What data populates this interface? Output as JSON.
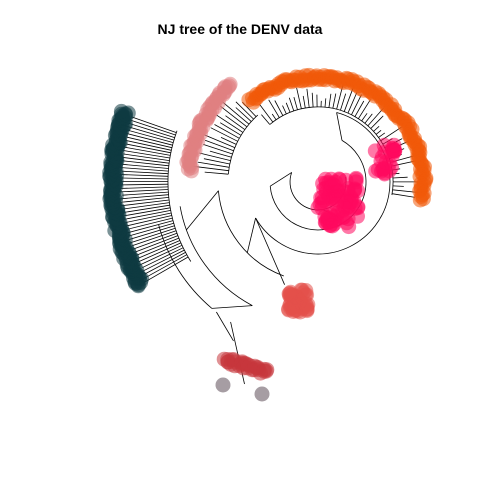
{
  "title": "NJ tree of the DENV data",
  "chart_data": {
    "type": "fan-phylogeny",
    "title": "NJ tree of the DENV data",
    "tip_groups": [
      {
        "color": "#F05A0A",
        "count": 140
      },
      {
        "color": "#E07F82",
        "count": 60
      },
      {
        "color": "#0F3A42",
        "count": 200
      },
      {
        "color": "#C7363C",
        "count": 30
      },
      {
        "color": "#E3504B",
        "count": 45
      },
      {
        "color": "#FF0A5F",
        "count": 110
      },
      {
        "color": "#5C4D57",
        "count": 2
      }
    ]
  }
}
